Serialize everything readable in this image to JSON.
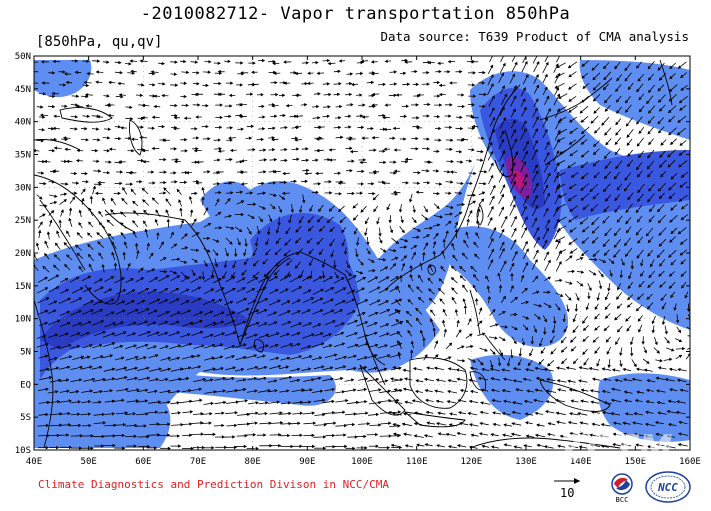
{
  "header": {
    "title": "-2010082712- Vapor transportation 850hPa",
    "variable_label": "[850hPa, qu,qv]",
    "source": "Data source: T639 Product of CMA analysis"
  },
  "map": {
    "lon_range": [
      40,
      160
    ],
    "lat_range": [
      -10,
      50
    ],
    "lat_labels": [
      "50N",
      "45N",
      "40N",
      "35N",
      "30N",
      "25N",
      "20N",
      "15N",
      "10N",
      "5N",
      "EQ",
      "5S",
      "10S"
    ],
    "lon_labels": [
      "40E",
      "50E",
      "60E",
      "70E",
      "80E",
      "90E",
      "100E",
      "110E",
      "120E",
      "130E",
      "140E",
      "150E",
      "160E"
    ],
    "colors": {
      "level1": "#5f8ef2",
      "level2": "#3a57e0",
      "level3": "#2b3cc4",
      "level4": "#7d1fa0",
      "level5": "#c0147a",
      "ocean": "#ffffff",
      "coast": "#000000"
    }
  },
  "footer": {
    "credit": "Climate Diagnostics and Prediction Divison in NCC/CMA",
    "ref_vector_label": "10",
    "logo_bcc": "BCC",
    "logo_ncc": "NCC"
  },
  "watermark": "ZCTM"
}
